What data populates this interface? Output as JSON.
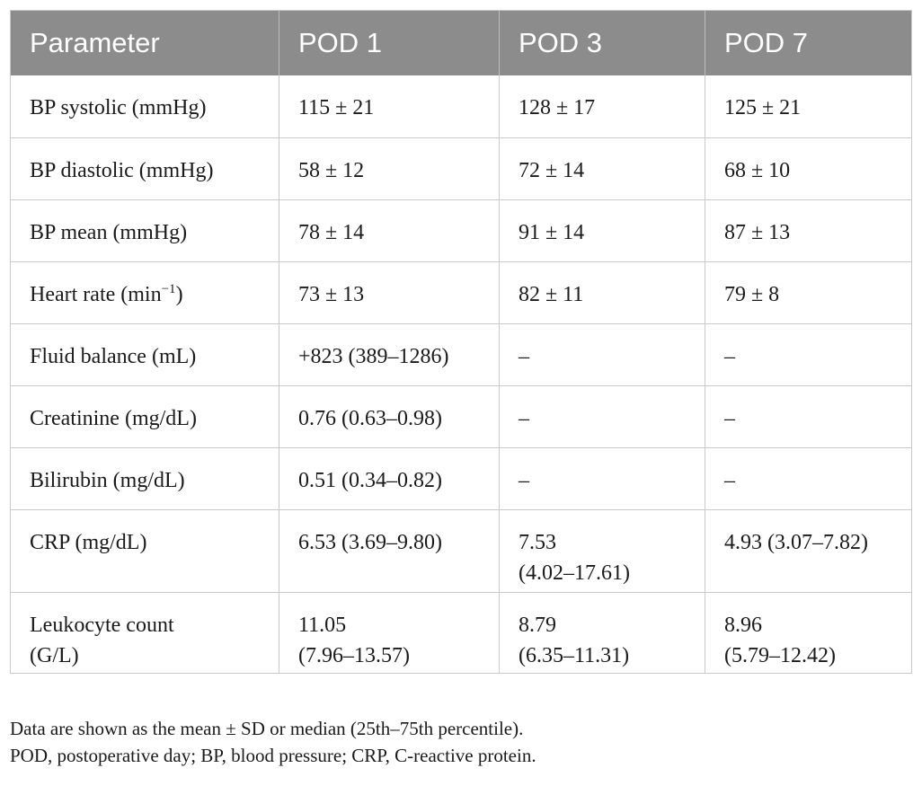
{
  "table": {
    "headers": [
      "Parameter",
      "POD 1",
      "POD 3",
      "POD 7"
    ],
    "rows": [
      {
        "parameter": "BP systolic (mmHg)",
        "pod1": "115 ± 21",
        "pod3": "128 ± 17",
        "pod7": "125 ± 21"
      },
      {
        "parameter": "BP diastolic (mmHg)",
        "pod1": "58 ± 12",
        "pod3": "72 ± 14",
        "pod7": "68 ± 10"
      },
      {
        "parameter": "BP mean (mmHg)",
        "pod1": "78 ± 14",
        "pod3": "91 ± 14",
        "pod7": "87 ± 13"
      },
      {
        "parameter_prefix": "Heart rate (min",
        "parameter_sup": "−1",
        "parameter_suffix": ")",
        "pod1": "73 ± 13",
        "pod3": "82 ± 11",
        "pod7": "79 ± 8"
      },
      {
        "parameter": "Fluid balance (mL)",
        "pod1": "+823 (389–1286)",
        "pod3": "–",
        "pod7": "–"
      },
      {
        "parameter": "Creatinine (mg/dL)",
        "pod1": "0.76 (0.63–0.98)",
        "pod3": "–",
        "pod7": "–"
      },
      {
        "parameter": "Bilirubin (mg/dL)",
        "pod1": "0.51 (0.34–0.82)",
        "pod3": "–",
        "pod7": "–"
      },
      {
        "parameter": "CRP (mg/dL)",
        "pod1": "6.53 (3.69–9.80)",
        "pod3_line1": "7.53",
        "pod3_line2": "(4.02–17.61)",
        "pod7": "4.93 (3.07–7.82)"
      },
      {
        "parameter_line1": "Leukocyte count",
        "parameter_line2": "(G/L)",
        "pod1_line1": "11.05",
        "pod1_line2": "(7.96–13.57)",
        "pod3_line1": "8.79",
        "pod3_line2": "(6.35–11.31)",
        "pod7_line1": "8.96",
        "pod7_line2": "(5.79–12.42)"
      }
    ]
  },
  "footnotes": {
    "line1": "Data are shown as the mean ± SD or median (25th–75th percentile).",
    "line2": "POD, postoperative day; BP, blood pressure; CRP, C-reactive protein."
  }
}
